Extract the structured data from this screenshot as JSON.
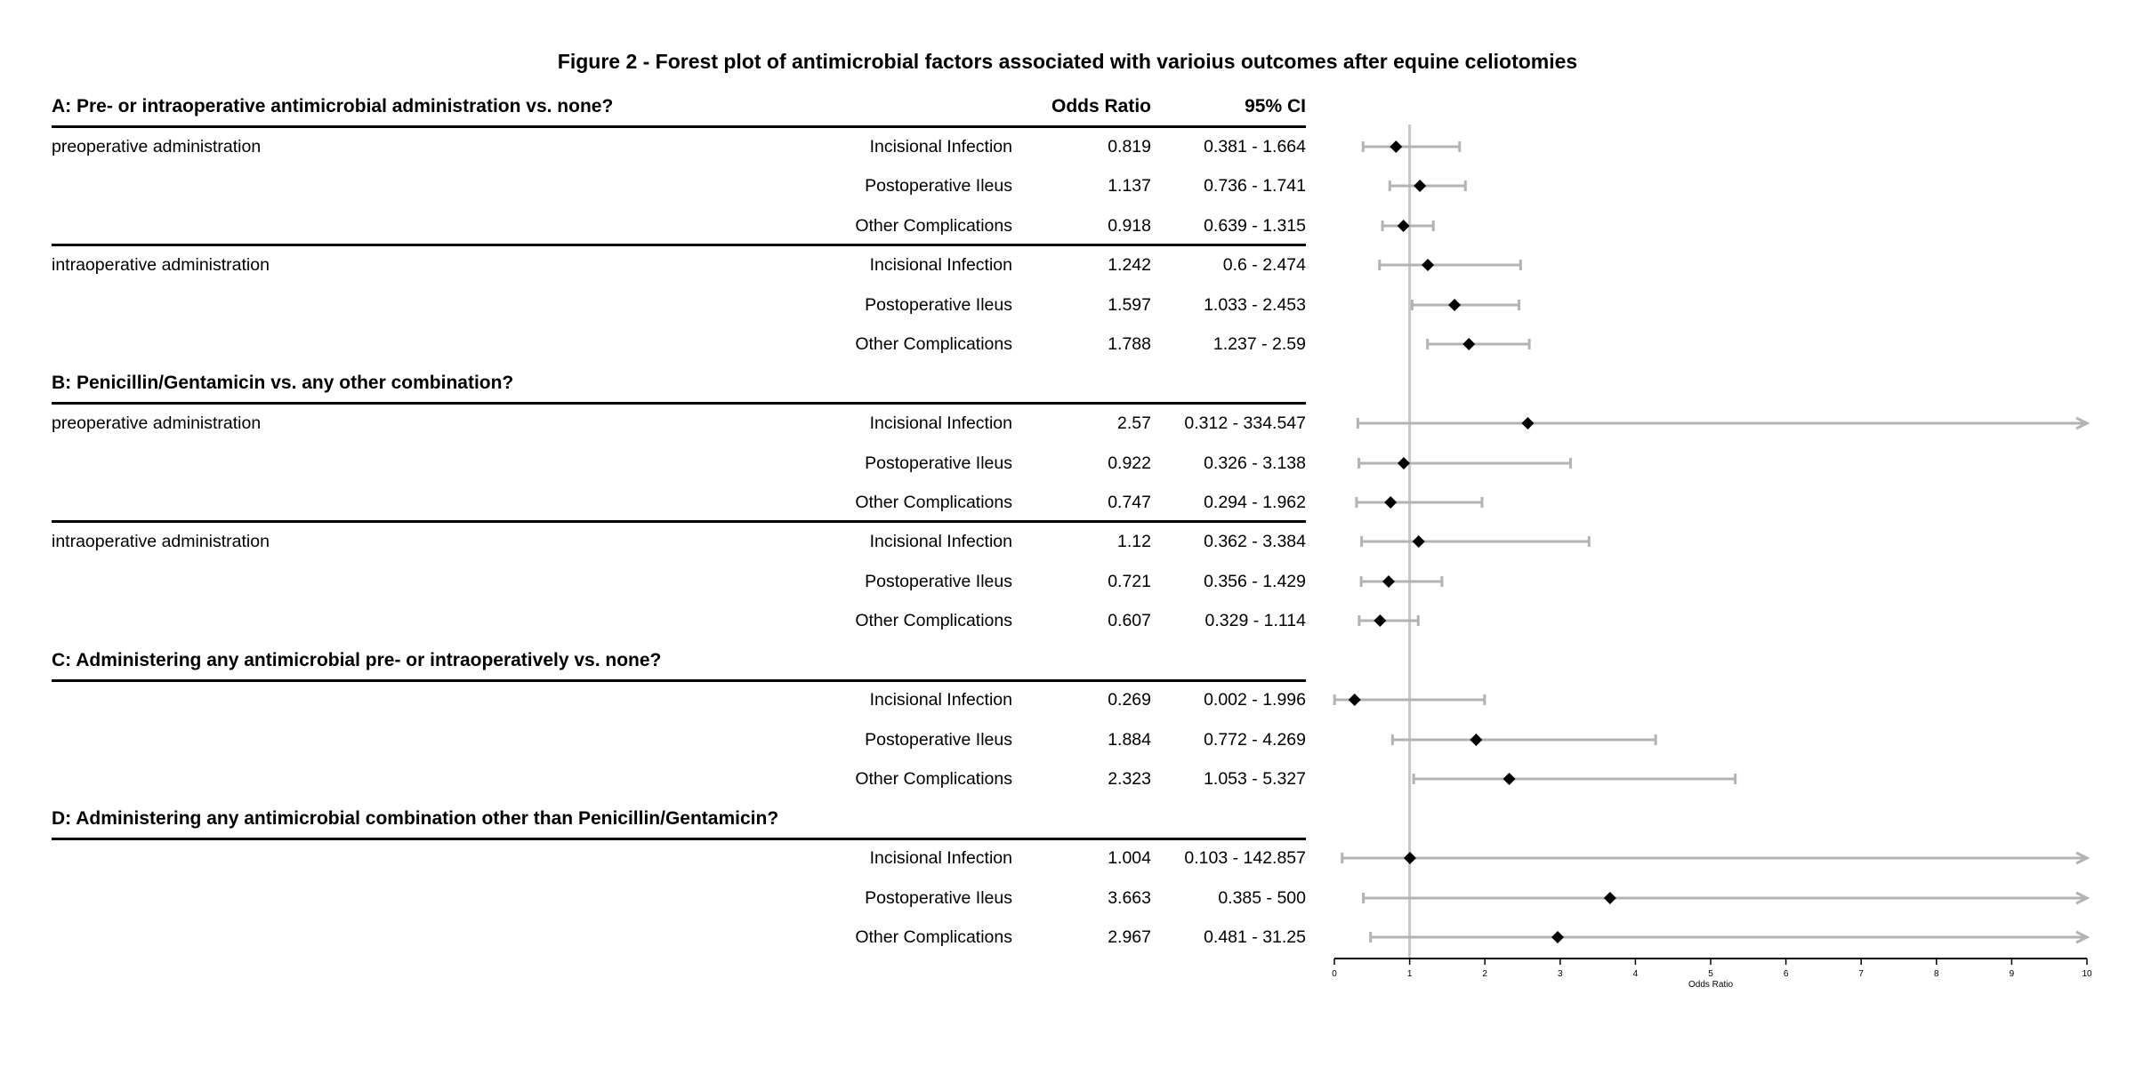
{
  "title": "Figure 2 - Forest plot of antimicrobial factors associated with varioius outcomes after equine celiotomies",
  "columns": {
    "or": "Odds Ratio",
    "ci": "95% CI"
  },
  "colors": {
    "ci_line": "#b3b3b3",
    "ref_line": "#c7c7c7",
    "marker": "#000000"
  },
  "sections": [
    {
      "title": "A: Pre- or intraoperative antimicrobial administration vs. none?",
      "groups": [
        {
          "label": "preoperative administration",
          "rows": [
            {
              "outcome": "Incisional Infection",
              "or": "0.819",
              "ci": "0.381 - 1.664"
            },
            {
              "outcome": "Postoperative Ileus",
              "or": "1.137",
              "ci": "0.736 - 1.741"
            },
            {
              "outcome": "Other Complications",
              "or": "0.918",
              "ci": "0.639 - 1.315"
            }
          ]
        },
        {
          "label": "intraoperative administration",
          "rows": [
            {
              "outcome": "Incisional Infection",
              "or": "1.242",
              "ci": "0.6 - 2.474"
            },
            {
              "outcome": "Postoperative Ileus",
              "or": "1.597",
              "ci": "1.033 - 2.453"
            },
            {
              "outcome": "Other Complications",
              "or": "1.788",
              "ci": "1.237 - 2.59"
            }
          ]
        }
      ]
    },
    {
      "title": "B: Penicillin/Gentamicin vs. any other combination?",
      "groups": [
        {
          "label": "preoperative administration",
          "rows": [
            {
              "outcome": "Incisional Infection",
              "or": "2.57",
              "ci": "0.312 - 334.547"
            },
            {
              "outcome": "Postoperative Ileus",
              "or": "0.922",
              "ci": "0.326 - 3.138"
            },
            {
              "outcome": "Other Complications",
              "or": "0.747",
              "ci": "0.294 - 1.962"
            }
          ]
        },
        {
          "label": "intraoperative administration",
          "rows": [
            {
              "outcome": "Incisional Infection",
              "or": "1.12",
              "ci": "0.362 - 3.384"
            },
            {
              "outcome": "Postoperative Ileus",
              "or": "0.721",
              "ci": "0.356 - 1.429"
            },
            {
              "outcome": "Other Complications",
              "or": "0.607",
              "ci": "0.329 - 1.114"
            }
          ]
        }
      ]
    },
    {
      "title": "C: Administering any antimicrobial pre- or intraoperatively vs. none?",
      "groups": [
        {
          "label": "",
          "rows": [
            {
              "outcome": "Incisional Infection",
              "or": "0.269",
              "ci": "0.002 - 1.996"
            },
            {
              "outcome": "Postoperative Ileus",
              "or": "1.884",
              "ci": "0.772 - 4.269"
            },
            {
              "outcome": "Other Complications",
              "or": "2.323",
              "ci": "1.053 - 5.327"
            }
          ]
        }
      ]
    },
    {
      "title": "D: Administering any antimicrobial combination other than Penicillin/Gentamicin?",
      "groups": [
        {
          "label": "",
          "rows": [
            {
              "outcome": "Incisional Infection",
              "or": "1.004",
              "ci": "0.103 - 142.857"
            },
            {
              "outcome": "Postoperative Ileus",
              "or": "3.663",
              "ci": "0.385 - 500"
            },
            {
              "outcome": "Other Complications",
              "or": "2.967",
              "ci": "0.481 - 31.25"
            }
          ]
        }
      ]
    }
  ],
  "chart_data": {
    "type": "scatter",
    "subtype": "forest",
    "title": "Figure 2 - Forest plot of antimicrobial factors associated with varioius outcomes after equine celiotomies",
    "xlabel": "Odds Ratio",
    "ylabel": "",
    "xlim": [
      0,
      10
    ],
    "x_ticks": [
      "0",
      "1",
      "2",
      "3",
      "4",
      "5",
      "6",
      "7",
      "8",
      "9",
      "10"
    ],
    "reference_line": 1,
    "grid": false,
    "points": [
      {
        "or": 0.819,
        "lo": 0.381,
        "hi": 1.664
      },
      {
        "or": 1.137,
        "lo": 0.736,
        "hi": 1.741
      },
      {
        "or": 0.918,
        "lo": 0.639,
        "hi": 1.315
      },
      {
        "or": 1.242,
        "lo": 0.6,
        "hi": 2.474
      },
      {
        "or": 1.597,
        "lo": 1.033,
        "hi": 2.453
      },
      {
        "or": 1.788,
        "lo": 1.237,
        "hi": 2.59
      },
      {
        "or": 2.57,
        "lo": 0.312,
        "hi": 334.547
      },
      {
        "or": 0.922,
        "lo": 0.326,
        "hi": 3.138
      },
      {
        "or": 0.747,
        "lo": 0.294,
        "hi": 1.962
      },
      {
        "or": 1.12,
        "lo": 0.362,
        "hi": 3.384
      },
      {
        "or": 0.721,
        "lo": 0.356,
        "hi": 1.429
      },
      {
        "or": 0.607,
        "lo": 0.329,
        "hi": 1.114
      },
      {
        "or": 0.269,
        "lo": 0.002,
        "hi": 1.996
      },
      {
        "or": 1.884,
        "lo": 0.772,
        "hi": 4.269
      },
      {
        "or": 2.323,
        "lo": 1.053,
        "hi": 5.327
      },
      {
        "or": 1.004,
        "lo": 0.103,
        "hi": 142.857
      },
      {
        "or": 3.663,
        "lo": 0.385,
        "hi": 500
      },
      {
        "or": 2.967,
        "lo": 0.481,
        "hi": 31.25
      }
    ]
  }
}
